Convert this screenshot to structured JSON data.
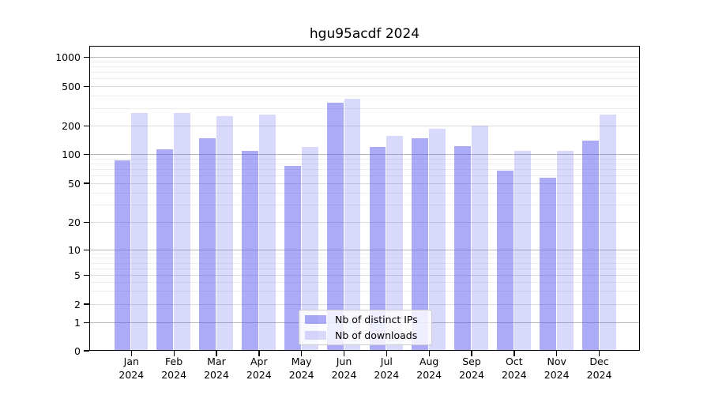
{
  "title": "hgu95acdf 2024",
  "chart_data": {
    "type": "bar",
    "title": "hgu95acdf 2024",
    "categories": [
      "Jan 2024",
      "Feb 2024",
      "Mar 2024",
      "Apr 2024",
      "May 2024",
      "Jun 2024",
      "Jul 2024",
      "Aug 2024",
      "Sep 2024",
      "Oct 2024",
      "Nov 2024",
      "Dec 2024"
    ],
    "series": [
      {
        "name": "Nb of distinct IPs",
        "color": "rgba(80,80,240,0.48)",
        "color_hex": "#aaaaf8",
        "values": [
          85,
          112,
          145,
          108,
          74,
          335,
          117,
          146,
          120,
          67,
          56,
          137
        ]
      },
      {
        "name": "Nb of downloads",
        "color": "rgba(80,80,240,0.22)",
        "color_hex": "#dbdcf9",
        "values": [
          265,
          265,
          245,
          255,
          117,
          370,
          153,
          182,
          197,
          108,
          108,
          255
        ]
      }
    ],
    "y_ticks": [
      0,
      1,
      2,
      5,
      10,
      20,
      50,
      100,
      200,
      500,
      1000
    ],
    "y_scale": "asinh (log above 1, compressed toward 0)",
    "ylim": [
      0,
      1300
    ],
    "xlabel": "",
    "ylabel": "",
    "grid": true,
    "legend_position": "lower center"
  },
  "colors": {
    "grid_major": "#b9b9b9",
    "grid_labeled": "#dddddd",
    "grid_minor": "#ededed",
    "axis": "#000000"
  }
}
